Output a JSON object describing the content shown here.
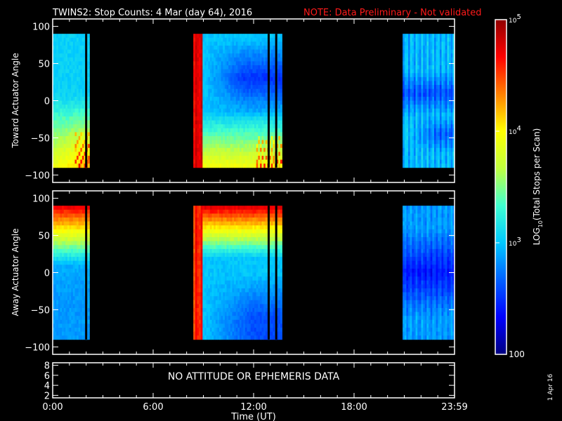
{
  "header": {
    "title": "TWINS2: Stop Counts:  4 Mar (day  64), 2016",
    "note": "NOTE: Data Preliminary - Not validated",
    "note_color": "#ff1a1a"
  },
  "side_date": "1 Apr 16",
  "colors": {
    "background": "#000000",
    "axes": "#ffffff",
    "colormap": [
      "#000080",
      "#0000ff",
      "#0060ff",
      "#00c8ff",
      "#40ffd0",
      "#c0ff40",
      "#ffff00",
      "#ff8000",
      "#ff0000",
      "#900000"
    ]
  },
  "chart_data": [
    {
      "type": "heatmap",
      "name": "toward",
      "title": "",
      "xlabel": "",
      "ylabel": "Toward Actuator Angle",
      "xlim": [
        0,
        24
      ],
      "ylim": [
        -110,
        110
      ],
      "y_ticks": [
        100,
        50,
        0,
        -50,
        -100
      ],
      "y_tick_labels": [
        "100",
        "50",
        "0",
        "−50",
        "−100"
      ],
      "data_y_range": [
        -90,
        90
      ],
      "data_intervals_hours": [
        [
          0.0,
          2.2
        ],
        [
          8.4,
          13.7
        ],
        [
          20.9,
          24.0
        ]
      ],
      "structure": [
        {
          "time_range": [
            0.0,
            2.2
          ],
          "description": "log counts rise from ~2.8 at top to ~4.7 at bottom angles"
        },
        {
          "time_range": [
            8.4,
            9.0
          ],
          "description": "bright band ~4.8 across all angles"
        },
        {
          "time_range": [
            9.0,
            13.7
          ],
          "description": "minimum ~2.4 near +30 deg after 11 UT, peak ~4.9 near -90"
        },
        {
          "time_range": [
            20.9,
            24.0
          ],
          "description": "low counts ~2.5-3.0, blue minima near 0 and -50"
        }
      ],
      "vertical_lines_hours": [
        2.0,
        12.9,
        13.35
      ]
    },
    {
      "type": "heatmap",
      "name": "away",
      "title": "",
      "xlabel": "",
      "ylabel": "Away Actuator Angle",
      "xlim": [
        0,
        24
      ],
      "ylim": [
        -110,
        110
      ],
      "y_ticks": [
        100,
        50,
        0,
        -50,
        -100
      ],
      "y_tick_labels": [
        "100",
        "50",
        "0",
        "−50",
        "−100"
      ],
      "data_y_range": [
        -90,
        90
      ],
      "data_intervals_hours": [
        [
          0.0,
          2.2
        ],
        [
          8.4,
          13.7
        ],
        [
          20.9,
          24.0
        ]
      ],
      "structure": [
        {
          "time_range": [
            0.0,
            2.2
          ],
          "description": "high ~4.6 near +90, decreasing to ~2.8 at -90"
        },
        {
          "time_range": [
            8.4,
            13.7
          ],
          "description": "high ~4.8 near +90 and at early times, blue ~2.4 below 0 after 11 UT"
        },
        {
          "time_range": [
            20.9,
            24.0
          ],
          "description": "low counts ~2.3-3.0, darkest near 0"
        }
      ],
      "vertical_lines_hours": [
        2.0,
        12.9,
        13.35
      ]
    },
    {
      "type": "line",
      "name": "attitude",
      "ylim": [
        1.5,
        8.5
      ],
      "y_ticks": [
        8,
        6,
        4,
        2
      ],
      "y_tick_labels": [
        "8",
        "6",
        "4",
        "2"
      ],
      "message": "NO ATTITUDE OR EPHEMERIS DATA",
      "series": []
    }
  ],
  "x_axis": {
    "label": "Time (UT)",
    "ticks": [
      0,
      6,
      12,
      18,
      24
    ],
    "tick_labels": [
      "0:00",
      "6:00",
      "12:00",
      "18:00",
      "23:59"
    ]
  },
  "colorbar": {
    "label_prefix": "LOG",
    "label_sub": "10",
    "label_suffix": "(Total Stops per Scan)",
    "min": 2,
    "max": 5,
    "ticks": [
      {
        "value": 5,
        "base": "10",
        "exp": "5"
      },
      {
        "value": 4,
        "base": "10",
        "exp": "4"
      },
      {
        "value": 3,
        "base": "10",
        "exp": "3"
      },
      {
        "value": 2,
        "base": "100",
        "exp": ""
      }
    ]
  }
}
